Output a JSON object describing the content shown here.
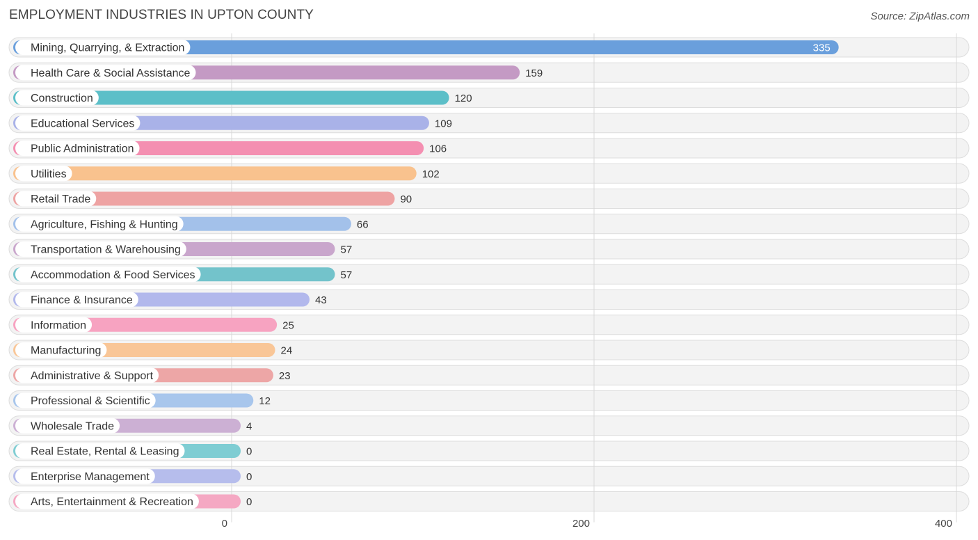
{
  "header": {
    "title": "EMPLOYMENT INDUSTRIES IN UPTON COUNTY",
    "source": "Source: ZipAtlas.com"
  },
  "colors": {
    "background": "#ffffff",
    "row_bg": "#f3f3f3",
    "row_border": "#dddddd",
    "grid": "#d8d8d8",
    "text": "#333333"
  },
  "chart_data": {
    "type": "bar",
    "orientation": "horizontal",
    "title": "EMPLOYMENT INDUSTRIES IN UPTON COUNTY",
    "xlabel": "",
    "ylabel": "",
    "xlim": [
      0,
      400
    ],
    "xticks": [
      0,
      200,
      400
    ],
    "categories": [
      "Mining, Quarrying, & Extraction",
      "Health Care & Social Assistance",
      "Construction",
      "Educational Services",
      "Public Administration",
      "Utilities",
      "Retail Trade",
      "Agriculture, Fishing & Hunting",
      "Transportation & Warehousing",
      "Accommodation & Food Services",
      "Finance & Insurance",
      "Information",
      "Manufacturing",
      "Administrative & Support",
      "Professional & Scientific",
      "Wholesale Trade",
      "Real Estate, Rental & Leasing",
      "Enterprise Management",
      "Arts, Entertainment & Recreation"
    ],
    "values": [
      335,
      159,
      120,
      109,
      106,
      102,
      90,
      66,
      57,
      57,
      43,
      25,
      24,
      23,
      12,
      4,
      0,
      0,
      0
    ],
    "bar_colors": [
      "#6a9fdc",
      "#c49ac4",
      "#5cbfc8",
      "#a9b2e8",
      "#f48fb1",
      "#f9c28e",
      "#eea3a3",
      "#a3c1ea",
      "#c9a6cc",
      "#73c3cb",
      "#b2b8ec",
      "#f7a3c1",
      "#f9c697",
      "#eda6a6",
      "#a8c6ec",
      "#ccb0d4",
      "#7fcdd3",
      "#b6bdec",
      "#f5a8c3"
    ],
    "value_label_inside": [
      true,
      false,
      false,
      false,
      false,
      false,
      false,
      false,
      false,
      false,
      false,
      false,
      false,
      false,
      false,
      false,
      false,
      false,
      false
    ]
  }
}
